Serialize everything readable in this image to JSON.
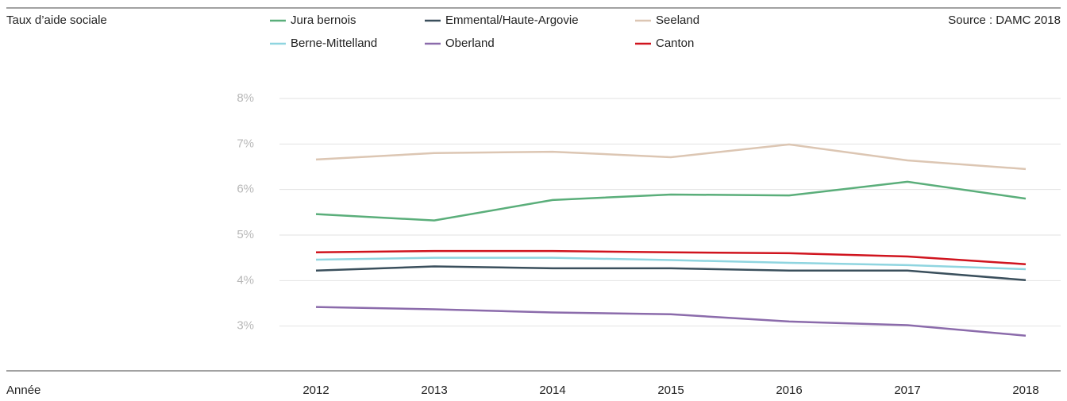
{
  "chart_data": {
    "type": "line",
    "title": "Taux d’aide sociale",
    "source": "Source : DAMC 2018",
    "x_label": "Année",
    "categories": [
      "2012",
      "2013",
      "2014",
      "2015",
      "2016",
      "2017",
      "2018"
    ],
    "series": [
      {
        "name": "Jura bernois",
        "color": "#5aae7a",
        "values": [
          5.46,
          5.32,
          5.77,
          5.89,
          5.87,
          6.17,
          5.8
        ]
      },
      {
        "name": "Emmental/Haute-Argovie",
        "color": "#3a4f5c",
        "values": [
          4.22,
          4.31,
          4.27,
          4.27,
          4.22,
          4.22,
          4.01
        ]
      },
      {
        "name": "Seeland",
        "color": "#dcc6b3",
        "values": [
          6.66,
          6.8,
          6.83,
          6.71,
          6.99,
          6.64,
          6.45
        ]
      },
      {
        "name": "Berne-Mittelland",
        "color": "#8fd5e0",
        "values": [
          4.46,
          4.5,
          4.5,
          4.45,
          4.39,
          4.34,
          4.25
        ]
      },
      {
        "name": "Oberland",
        "color": "#8b6bab",
        "values": [
          3.42,
          3.37,
          3.3,
          3.26,
          3.1,
          3.02,
          2.79
        ]
      },
      {
        "name": "Canton",
        "color": "#d0141e",
        "values": [
          4.62,
          4.65,
          4.65,
          4.62,
          4.6,
          4.53,
          4.36
        ]
      }
    ],
    "ylim": [
      2,
      8
    ],
    "yticks": [
      {
        "value": 3,
        "label": "3%"
      },
      {
        "value": 4,
        "label": "4%"
      },
      {
        "value": 5,
        "label": "5%"
      },
      {
        "value": 6,
        "label": "6%"
      },
      {
        "value": 7,
        "label": "7%"
      },
      {
        "value": 8,
        "label": "8%"
      }
    ],
    "grid": true
  }
}
